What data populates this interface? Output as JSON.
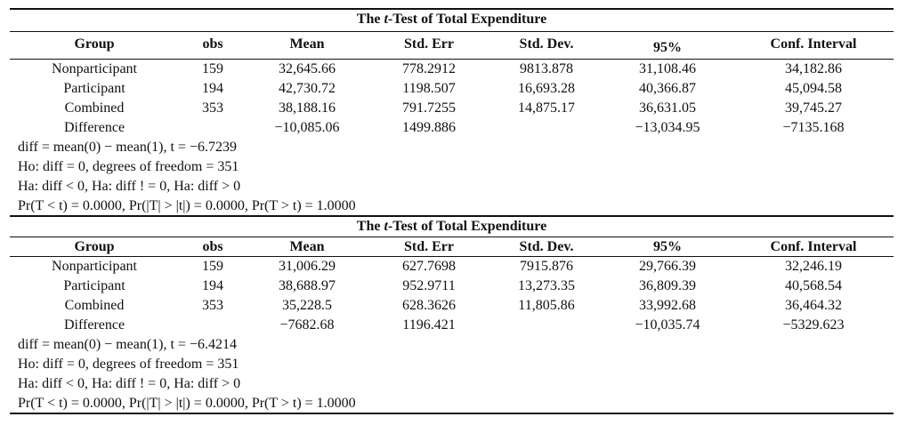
{
  "tables": [
    {
      "title_pre": "The ",
      "title_t": "t",
      "title_post": "-Test of Total Expenditure",
      "headers": [
        "Group",
        "obs",
        "Mean",
        "Std. Err",
        "Std. Dev.",
        "95%",
        "Conf. Interval"
      ],
      "rows": [
        [
          "Nonparticipant",
          "159",
          "32,645.66",
          "778.2912",
          "9813.878",
          "31,108.46",
          "34,182.86"
        ],
        [
          "Participant",
          "194",
          "42,730.72",
          "1198.507",
          "16,693.28",
          "40,366.87",
          "45,094.58"
        ],
        [
          "Combined",
          "353",
          "38,188.16",
          "791.7255",
          "14,875.17",
          "36,631.05",
          "39,745.27"
        ],
        [
          "Difference",
          "",
          "−10,085.06",
          "1499.886",
          "",
          "−13,034.95",
          "−7135.168"
        ]
      ],
      "notes": [
        "diff = mean(0) − mean(1), t = −6.7239",
        "Ho: diff = 0, degrees of freedom = 351",
        "Ha: diff < 0, Ha: diff ! = 0, Ha: diff > 0",
        "Pr(T < t) = 0.0000, Pr(|T| > |t|) = 0.0000, Pr(T > t) = 1.0000"
      ]
    },
    {
      "title_pre": "The ",
      "title_t": "t",
      "title_post": "-Test of Total Expenditure",
      "headers": [
        "Group",
        "obs",
        "Mean",
        "Std. Err",
        "Std. Dev.",
        "95%",
        "Conf. Interval"
      ],
      "rows": [
        [
          "Nonparticipant",
          "159",
          "31,006.29",
          "627.7698",
          "7915.876",
          "29,766.39",
          "32,246.19"
        ],
        [
          "Participant",
          "194",
          "38,688.97",
          "952.9711",
          "13,273.35",
          "36,809.39",
          "40,568.54"
        ],
        [
          "Combined",
          "353",
          "35,228.5",
          "628.3626",
          "11,805.86",
          "33,992.68",
          "36,464.32"
        ],
        [
          "Difference",
          "",
          "−7682.68",
          "1196.421",
          "",
          "−10,035.74",
          "−5329.623"
        ]
      ],
      "notes": [
        "diff = mean(0) − mean(1), t = −6.4214",
        "Ho: diff = 0, degrees of freedom = 351",
        "Ha: diff < 0, Ha: diff ! = 0, Ha: diff > 0",
        "Pr(T < t) = 0.0000, Pr(|T| > |t|) = 0.0000, Pr(T > t) = 1.0000"
      ]
    }
  ]
}
